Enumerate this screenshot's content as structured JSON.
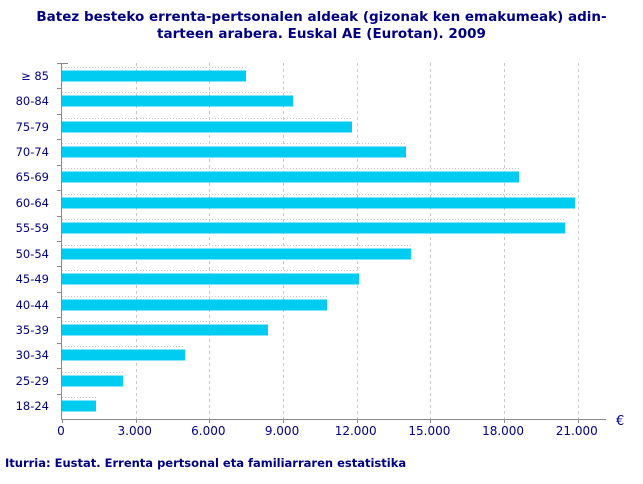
{
  "title": {
    "line1": "Batez besteko errenta-pertsonalen aldeak (gizonak ken emakumeak) adin-",
    "line2": "tarteen arabera. Euskal AE (Eurotan). 2009"
  },
  "footer": "Iturria: Eustat. Errenta pertsonal eta familiarraren estatistika",
  "axis_unit": "€",
  "colors": {
    "bar": "#00ccf2",
    "text": "#000080",
    "axis": "#8a8a8a",
    "grid": "#c9c9c9"
  },
  "chart_data": {
    "type": "bar",
    "orientation": "horizontal",
    "title": "Batez besteko errenta-pertsonalen aldeak (gizonak ken emakumeak) adin-tarteen arabera. Euskal AE (Eurotan). 2009",
    "categories": [
      "≥ 85",
      "80-84",
      "75-79",
      "70-74",
      "65-69",
      "60-64",
      "55-59",
      "50-54",
      "45-49",
      "40-44",
      "35-39",
      "30-34",
      "25-29",
      "18-24"
    ],
    "values": [
      7500,
      9400,
      11800,
      14000,
      18600,
      20900,
      20500,
      14200,
      12100,
      10800,
      8400,
      5000,
      2500,
      1400
    ],
    "xlabel": "€",
    "ylabel": "",
    "x_ticks": [
      0,
      3000,
      6000,
      9000,
      12000,
      15000,
      18000,
      21000
    ],
    "x_tick_labels": [
      "0",
      "3.000",
      "6.000",
      "9.000",
      "12.000",
      "15.000",
      "18.000",
      "21.000"
    ],
    "xlim": [
      0,
      22150
    ],
    "grid": "vertical-dashed",
    "legend": false
  }
}
